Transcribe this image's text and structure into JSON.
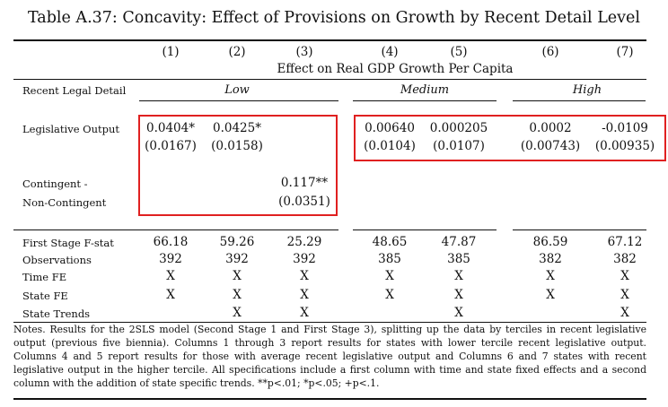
{
  "title": "Table A.37: Concavity: Effect of Provisions on Growth by Recent Detail Level",
  "columns": [
    "(1)",
    "(2)",
    "(3)",
    "(4)",
    "(5)",
    "(6)",
    "(7)"
  ],
  "dep_var": "Effect on Real GDP Growth Per Capita",
  "header": {
    "row_label": "Recent Legal Detail",
    "groups": [
      "Low",
      "Medium",
      "High"
    ]
  },
  "rows": {
    "legislative_output": {
      "label": "Legislative Output",
      "coef": [
        "0.0404*",
        "0.0425*",
        "",
        "0.00640",
        "0.000205",
        "0.0002",
        "-0.0109"
      ],
      "se": [
        "(0.0167)",
        "(0.0158)",
        "",
        "(0.0104)",
        "(0.0107)",
        "(0.00743)",
        "(0.00935)"
      ]
    },
    "contingent": {
      "label_1": "Contingent -",
      "label_2": "Non-Contingent",
      "coef": [
        "",
        "",
        "0.117**",
        "",
        "",
        "",
        ""
      ],
      "se": [
        "",
        "",
        "(0.0351)",
        "",
        "",
        "",
        ""
      ]
    },
    "first_stage": {
      "label": "First Stage F-stat",
      "values": [
        "66.18",
        "59.26",
        "25.29",
        "48.65",
        "47.87",
        "86.59",
        "67.12"
      ]
    },
    "observations": {
      "label": "Observations",
      "values": [
        "392",
        "392",
        "392",
        "385",
        "385",
        "382",
        "382"
      ]
    },
    "time_fe": {
      "label": "Time FE",
      "values": [
        "X",
        "X",
        "X",
        "X",
        "X",
        "X",
        "X"
      ]
    },
    "state_fe": {
      "label": "State FE",
      "values": [
        "X",
        "X",
        "X",
        "X",
        "X",
        "X",
        "X"
      ]
    },
    "state_trends": {
      "label": "State Trends",
      "values": [
        "",
        "X",
        "X",
        "",
        "X",
        "",
        "X"
      ]
    }
  },
  "notes": "Notes. Results for the 2SLS model (Second Stage 1 and First Stage 3), splitting up the data by terciles in recent legislative output (previous five biennia). Columns 1 through 3 report results for states with lower tercile recent legislative output. Columns 4 and 5 report results for those with average recent legislative output and Columns 6 and 7 states with recent legislative output in the higher tercile. All specifications include a first column with time and state fixed effects and a second column with the addition of state specific trends. **p<.01; *p<.05; +p<.1.",
  "highlight_color": "#e02020"
}
